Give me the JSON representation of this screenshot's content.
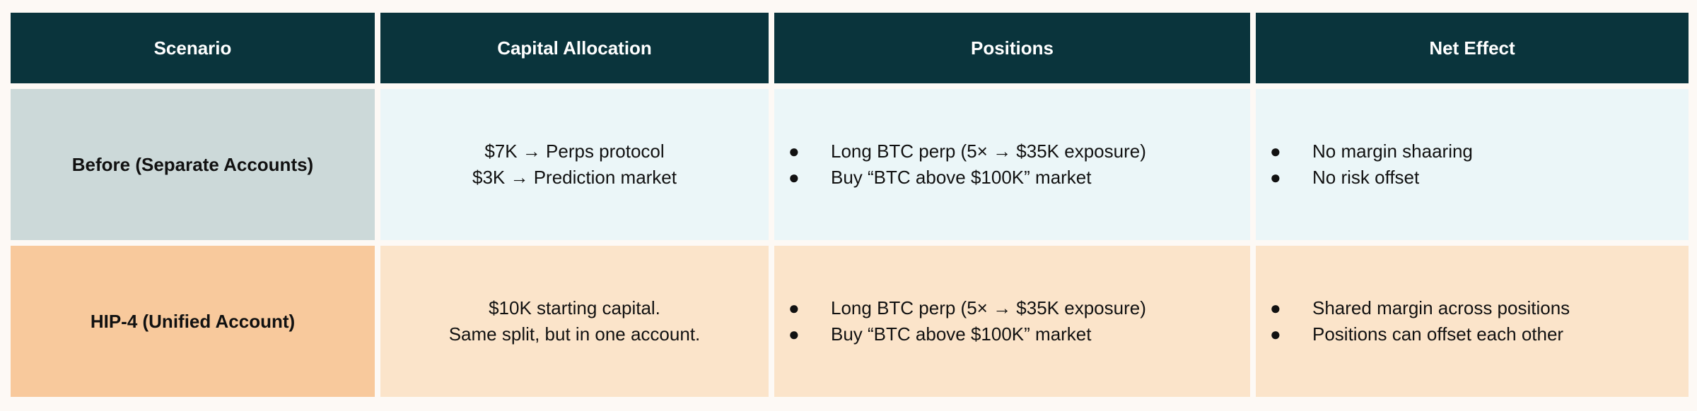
{
  "table": {
    "headers": [
      "Scenario",
      "Capital Allocation",
      "Positions",
      "Net Effect"
    ],
    "rows": [
      {
        "scenario": "Before (Separate Accounts)",
        "capital": [
          "$7K → Perps protocol",
          "$3K → Prediction market"
        ],
        "positions": [
          "Long BTC perp (5× → $35K exposure)",
          "Buy “BTC above $100K” market"
        ],
        "net_effect": [
          "No margin shaaring",
          "No risk offset"
        ]
      },
      {
        "scenario": "HIP-4 (Unified Account)",
        "capital": [
          "$10K starting capital.",
          "Same split, but in one account."
        ],
        "positions": [
          "Long BTC perp (5× → $35K exposure)",
          "Buy “BTC above $100K” market"
        ],
        "net_effect": [
          "Shared margin across positions",
          "Positions can offset each other"
        ]
      }
    ],
    "bullet": "●"
  },
  "colors": {
    "header": "#0a343c",
    "row1_scenario": "#ccd9d9",
    "row1": "#ebf6f8",
    "row2_scenario": "#f8c99c",
    "row2": "#fbe4ca"
  }
}
